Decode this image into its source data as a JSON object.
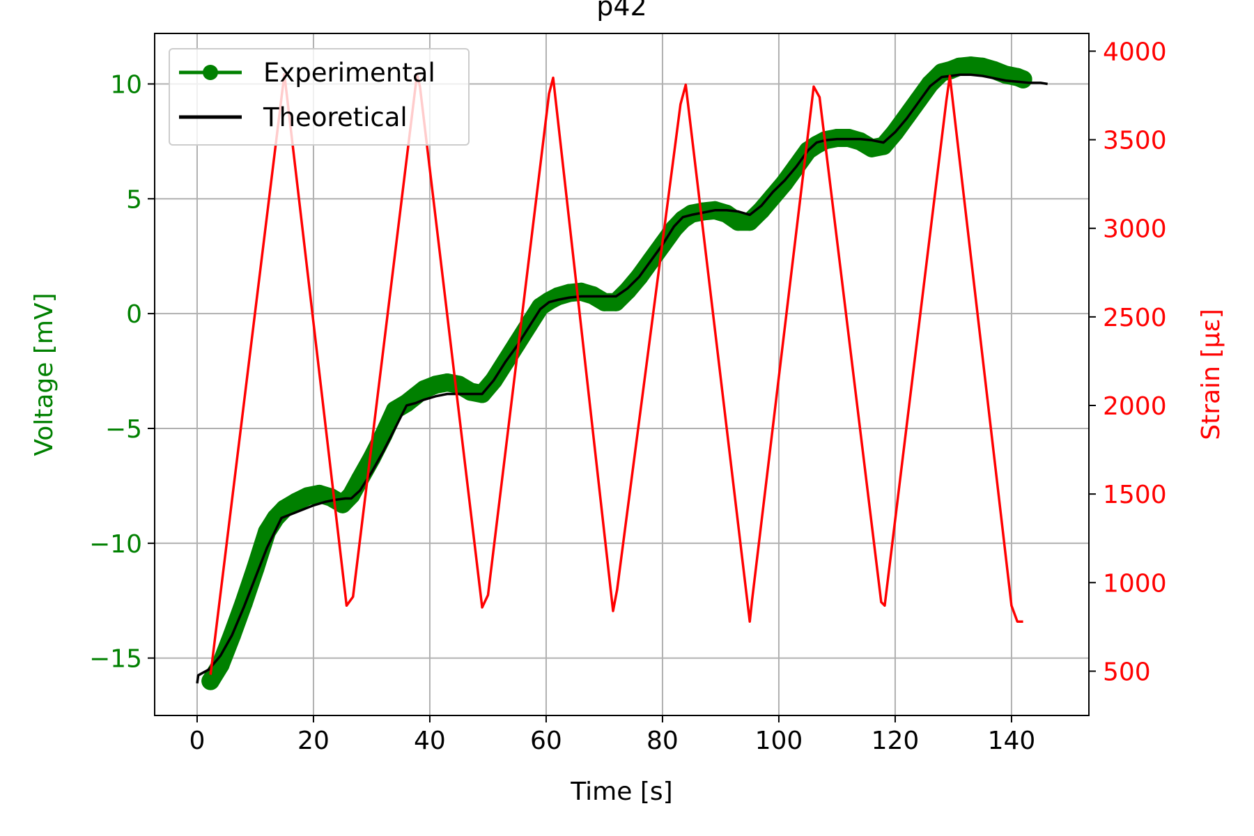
{
  "chart_data": {
    "type": "line",
    "title": "p42",
    "xlabel": "Time [s]",
    "ylabel_left": "Voltage [mV]",
    "ylabel_right": "Strain [με]",
    "xlim": [
      -7.3,
      153.3
    ],
    "ylim_left": [
      -17.5,
      12.2
    ],
    "ylim_right": [
      250,
      4100
    ],
    "x_ticks": [
      0,
      20,
      40,
      60,
      80,
      100,
      120,
      140
    ],
    "y_left_ticks": [
      -15,
      -10,
      -5,
      0,
      5,
      10
    ],
    "y_left_tick_labels": [
      "−15",
      "−10",
      "−5",
      "0",
      "5",
      "10"
    ],
    "y_right_ticks": [
      500,
      1000,
      1500,
      2000,
      2500,
      3000,
      3500,
      4000
    ],
    "grid": true,
    "legend_position": "upper-left",
    "colors": {
      "left_axis": "#008000",
      "right_axis": "#ff0000",
      "experimental": "#008000",
      "theoretical": "#000000",
      "strain": "#ff0000",
      "grid": "#b0b0b0"
    },
    "series": [
      {
        "name": "Experimental",
        "axis": "left",
        "style": "thick-marker-line",
        "x": [
          2.3,
          4,
          6,
          8,
          10,
          12,
          13.5,
          15,
          17,
          19,
          21,
          23,
          25,
          26.5,
          28,
          30,
          32,
          34,
          36,
          37.5,
          39,
          41,
          43,
          45,
          47,
          49,
          51,
          53,
          55,
          57,
          59,
          60.5,
          62,
          64,
          66,
          68,
          70,
          72,
          74,
          76,
          78,
          80,
          82,
          83.5,
          85,
          87,
          89,
          91,
          93,
          95,
          97,
          99,
          101,
          103,
          105,
          106.5,
          108,
          110,
          112,
          114,
          116,
          118,
          120,
          122,
          124,
          126,
          128,
          129.5,
          131,
          133,
          135,
          137,
          139,
          141,
          142
        ],
        "y": [
          -16.0,
          -15.3,
          -14.0,
          -12.6,
          -11.1,
          -9.5,
          -8.9,
          -8.5,
          -8.2,
          -7.95,
          -7.85,
          -8.0,
          -8.3,
          -7.9,
          -7.2,
          -6.3,
          -5.3,
          -4.2,
          -3.9,
          -3.6,
          -3.3,
          -3.1,
          -3.0,
          -3.1,
          -3.4,
          -3.5,
          -2.9,
          -2.1,
          -1.3,
          -0.5,
          0.3,
          0.55,
          0.75,
          0.9,
          0.95,
          0.8,
          0.5,
          0.5,
          1.0,
          1.6,
          2.3,
          3.0,
          3.7,
          4.1,
          4.35,
          4.45,
          4.5,
          4.35,
          4.0,
          4.0,
          4.5,
          5.1,
          5.7,
          6.4,
          7.1,
          7.35,
          7.55,
          7.65,
          7.65,
          7.5,
          7.2,
          7.3,
          7.9,
          8.6,
          9.3,
          10.0,
          10.5,
          10.6,
          10.75,
          10.8,
          10.75,
          10.6,
          10.4,
          10.3,
          10.2
        ]
      },
      {
        "name": "Theoretical",
        "axis": "left",
        "style": "line",
        "x": [
          0,
          0.2,
          2,
          4,
          6,
          8,
          10,
          12,
          14.5,
          16,
          18,
          20,
          22,
          24,
          25.5,
          26.5,
          28,
          30,
          32,
          34,
          36,
          37.5,
          39,
          41,
          43,
          45,
          47,
          49,
          51,
          53,
          55,
          57,
          59,
          60.5,
          62,
          64,
          66,
          68,
          70,
          72,
          74,
          76,
          78,
          80,
          82,
          83.5,
          85,
          87,
          89,
          91,
          93,
          95,
          97,
          99,
          101,
          103,
          105,
          106.5,
          108,
          110,
          112,
          114,
          116,
          118,
          120,
          122,
          124,
          126,
          128,
          129.5,
          131,
          133,
          135,
          137,
          139,
          141,
          143,
          145,
          146.2
        ],
        "y": [
          -16.1,
          -15.75,
          -15.5,
          -14.9,
          -14.0,
          -12.8,
          -11.5,
          -10.2,
          -8.9,
          -8.75,
          -8.55,
          -8.35,
          -8.2,
          -8.1,
          -8.05,
          -8.05,
          -7.7,
          -6.9,
          -6.0,
          -5.0,
          -4.0,
          -3.9,
          -3.75,
          -3.6,
          -3.5,
          -3.5,
          -3.5,
          -3.5,
          -2.9,
          -2.1,
          -1.4,
          -0.6,
          0.2,
          0.5,
          0.6,
          0.7,
          0.75,
          0.75,
          0.75,
          0.75,
          1.1,
          1.6,
          2.3,
          3.0,
          3.8,
          4.2,
          4.3,
          4.4,
          4.5,
          4.5,
          4.45,
          4.3,
          4.7,
          5.3,
          5.8,
          6.4,
          7.1,
          7.45,
          7.55,
          7.6,
          7.6,
          7.6,
          7.55,
          7.45,
          7.9,
          8.5,
          9.2,
          9.9,
          10.3,
          10.35,
          10.4,
          10.4,
          10.35,
          10.25,
          10.15,
          10.1,
          10.05,
          10.05,
          10.0
        ]
      },
      {
        "name": "Strain",
        "axis": "right",
        "style": "line",
        "x": [
          2.3,
          15,
          25.7,
          26.8,
          37.8,
          38.3,
          49,
          50,
          60.5,
          61.2,
          71.5,
          72.2,
          83.1,
          84,
          95,
          95.4,
          106,
          107,
          117.6,
          118.2,
          128.8,
          129.4,
          140,
          141,
          142
        ],
        "y": [
          480,
          3870,
          870,
          920,
          3870,
          3800,
          860,
          930,
          3760,
          3850,
          840,
          960,
          3700,
          3810,
          780,
          900,
          3800,
          3740,
          890,
          870,
          3720,
          3860,
          870,
          780,
          780
        ]
      }
    ]
  }
}
